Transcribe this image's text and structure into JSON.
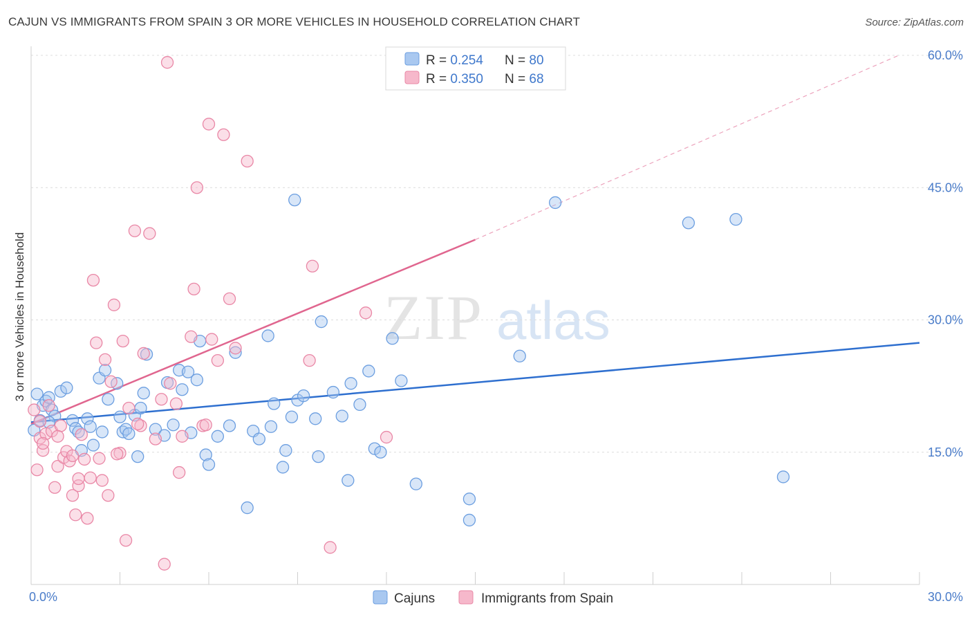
{
  "title": "CAJUN VS IMMIGRANTS FROM SPAIN 3 OR MORE VEHICLES IN HOUSEHOLD CORRELATION CHART",
  "source": "Source: ZipAtlas.com",
  "watermark": {
    "zip": "ZIP",
    "atlas": "atlas"
  },
  "colors": {
    "cajuns_fill": "#a9c8f0",
    "cajuns_stroke": "#6b9ee0",
    "cajuns_line": "#2e6fcf",
    "spain_fill": "#f6b8cb",
    "spain_stroke": "#e987a6",
    "spain_line": "#e0668f",
    "tick_text": "#4a7cc9",
    "grid": "#dcdcdc"
  },
  "legend": {
    "rows": [
      {
        "r_label": "R = ",
        "r_value": "0.254",
        "n_label": "N = ",
        "n_value": "80",
        "series": "cajuns"
      },
      {
        "r_label": "R = ",
        "r_value": "0.350",
        "n_label": "N = ",
        "n_value": "68",
        "series": "spain"
      }
    ]
  },
  "chart_data": {
    "type": "scatter",
    "title": "CAJUN VS IMMIGRANTS FROM SPAIN 3 OR MORE VEHICLES IN HOUSEHOLD CORRELATION CHART",
    "xlabel": "",
    "ylabel": "3 or more Vehicles in Household",
    "xlim": [
      0,
      30
    ],
    "ylim": [
      0,
      60
    ],
    "x_tick_labels": [
      {
        "value": 0,
        "label": "0.0%"
      },
      {
        "value": 30,
        "label": "30.0%"
      }
    ],
    "y_tick_labels": [
      {
        "value": 15,
        "label": "15.0%"
      },
      {
        "value": 30,
        "label": "30.0%"
      },
      {
        "value": 45,
        "label": "45.0%"
      },
      {
        "value": 60,
        "label": "60.0%"
      }
    ],
    "x_minor_ticks": [
      0,
      3,
      6,
      9,
      12,
      15,
      18,
      21,
      24,
      27,
      30
    ],
    "grid": true,
    "legend_position": "top-center",
    "series": [
      {
        "name": "Cajuns",
        "key": "cajuns",
        "r": 0.254,
        "n": 80,
        "trend": {
          "x": [
            0,
            30
          ],
          "y": [
            18.4,
            27.4
          ],
          "dashed_to": null
        },
        "points": [
          [
            0.2,
            21.6
          ],
          [
            0.3,
            18.6
          ],
          [
            0.4,
            20.3
          ],
          [
            0.5,
            20.8
          ],
          [
            0.6,
            21.2
          ],
          [
            0.7,
            19.8
          ],
          [
            0.8,
            19.1
          ],
          [
            1.0,
            21.9
          ],
          [
            1.2,
            22.3
          ],
          [
            1.4,
            18.6
          ],
          [
            1.5,
            17.7
          ],
          [
            1.6,
            17.3
          ],
          [
            1.7,
            15.2
          ],
          [
            1.9,
            18.8
          ],
          [
            2.1,
            15.8
          ],
          [
            2.3,
            23.4
          ],
          [
            2.4,
            17.3
          ],
          [
            2.5,
            24.3
          ],
          [
            2.6,
            21.0
          ],
          [
            2.9,
            22.8
          ],
          [
            3.0,
            19.0
          ],
          [
            3.1,
            17.3
          ],
          [
            3.2,
            17.6
          ],
          [
            3.3,
            17.1
          ],
          [
            3.5,
            19.2
          ],
          [
            3.6,
            14.5
          ],
          [
            3.7,
            20.0
          ],
          [
            3.8,
            21.7
          ],
          [
            3.9,
            26.1
          ],
          [
            4.2,
            17.6
          ],
          [
            4.5,
            16.9
          ],
          [
            4.6,
            22.9
          ],
          [
            4.8,
            18.1
          ],
          [
            5.0,
            24.3
          ],
          [
            5.1,
            22.1
          ],
          [
            5.3,
            24.1
          ],
          [
            5.4,
            17.2
          ],
          [
            5.6,
            23.2
          ],
          [
            5.7,
            27.6
          ],
          [
            5.9,
            14.7
          ],
          [
            6.0,
            13.6
          ],
          [
            6.3,
            16.8
          ],
          [
            6.7,
            18.0
          ],
          [
            6.9,
            26.3
          ],
          [
            7.3,
            8.7
          ],
          [
            7.5,
            17.4
          ],
          [
            7.7,
            16.5
          ],
          [
            8.0,
            28.2
          ],
          [
            8.1,
            17.9
          ],
          [
            8.2,
            20.5
          ],
          [
            8.5,
            13.3
          ],
          [
            8.6,
            15.2
          ],
          [
            8.8,
            19.0
          ],
          [
            8.9,
            43.6
          ],
          [
            9.0,
            20.9
          ],
          [
            9.2,
            21.4
          ],
          [
            9.6,
            18.8
          ],
          [
            9.7,
            14.5
          ],
          [
            9.8,
            29.8
          ],
          [
            10.2,
            21.8
          ],
          [
            10.5,
            19.1
          ],
          [
            10.7,
            11.8
          ],
          [
            10.8,
            22.8
          ],
          [
            11.1,
            20.4
          ],
          [
            11.4,
            24.2
          ],
          [
            11.6,
            15.4
          ],
          [
            11.8,
            15.0
          ],
          [
            12.2,
            27.9
          ],
          [
            12.5,
            23.1
          ],
          [
            13.0,
            11.4
          ],
          [
            14.8,
            9.7
          ],
          [
            14.8,
            7.3
          ],
          [
            16.5,
            25.9
          ],
          [
            17.7,
            43.3
          ],
          [
            22.2,
            41.0
          ],
          [
            23.8,
            41.4
          ],
          [
            25.4,
            12.2
          ],
          [
            0.1,
            17.5
          ],
          [
            0.6,
            18.4
          ],
          [
            2.0,
            17.9
          ]
        ]
      },
      {
        "name": "Immigrants from Spain",
        "key": "spain",
        "r": 0.35,
        "n": 68,
        "trend": {
          "x": [
            0,
            15
          ],
          "y": [
            18.2,
            39.1
          ],
          "dashed_to": {
            "x": 30,
            "y": 60
          }
        },
        "points": [
          [
            0.1,
            19.8
          ],
          [
            0.2,
            13.0
          ],
          [
            0.3,
            16.6
          ],
          [
            0.4,
            15.2
          ],
          [
            0.5,
            17.1
          ],
          [
            0.6,
            20.3
          ],
          [
            0.7,
            17.4
          ],
          [
            0.8,
            11.0
          ],
          [
            0.9,
            13.4
          ],
          [
            1.0,
            18.0
          ],
          [
            1.1,
            14.4
          ],
          [
            1.2,
            15.1
          ],
          [
            1.3,
            14.0
          ],
          [
            1.4,
            10.1
          ],
          [
            1.5,
            7.9
          ],
          [
            1.6,
            11.2
          ],
          [
            1.7,
            17.0
          ],
          [
            1.8,
            14.2
          ],
          [
            1.9,
            7.5
          ],
          [
            2.0,
            12.1
          ],
          [
            2.1,
            34.5
          ],
          [
            2.2,
            27.4
          ],
          [
            2.3,
            14.3
          ],
          [
            2.4,
            11.8
          ],
          [
            2.5,
            25.5
          ],
          [
            2.6,
            10.1
          ],
          [
            2.7,
            23.0
          ],
          [
            2.8,
            31.7
          ],
          [
            3.0,
            14.9
          ],
          [
            3.1,
            27.6
          ],
          [
            3.2,
            5.0
          ],
          [
            3.3,
            20.0
          ],
          [
            3.5,
            40.1
          ],
          [
            3.7,
            18.0
          ],
          [
            3.8,
            26.2
          ],
          [
            4.0,
            39.8
          ],
          [
            4.2,
            16.5
          ],
          [
            4.4,
            21.0
          ],
          [
            4.5,
            2.3
          ],
          [
            4.6,
            59.2
          ],
          [
            4.7,
            22.8
          ],
          [
            4.9,
            20.5
          ],
          [
            5.0,
            12.7
          ],
          [
            5.1,
            16.8
          ],
          [
            5.4,
            28.1
          ],
          [
            5.5,
            33.5
          ],
          [
            5.6,
            45.0
          ],
          [
            5.8,
            18.0
          ],
          [
            6.0,
            52.2
          ],
          [
            6.1,
            27.8
          ],
          [
            6.3,
            25.4
          ],
          [
            6.5,
            51.0
          ],
          [
            6.7,
            32.4
          ],
          [
            6.9,
            26.8
          ],
          [
            7.3,
            48.0
          ],
          [
            9.4,
            25.4
          ],
          [
            9.5,
            36.1
          ],
          [
            10.1,
            4.2
          ],
          [
            11.3,
            30.8
          ],
          [
            12.0,
            16.7
          ],
          [
            0.3,
            18.5
          ],
          [
            0.9,
            16.8
          ],
          [
            1.6,
            12.0
          ],
          [
            0.4,
            16.0
          ],
          [
            1.4,
            14.6
          ],
          [
            5.9,
            18.1
          ],
          [
            3.6,
            18.2
          ],
          [
            2.9,
            14.8
          ]
        ]
      }
    ]
  },
  "bottom_legend": [
    {
      "key": "cajuns",
      "label": "Cajuns"
    },
    {
      "key": "spain",
      "label": "Immigrants from Spain"
    }
  ]
}
